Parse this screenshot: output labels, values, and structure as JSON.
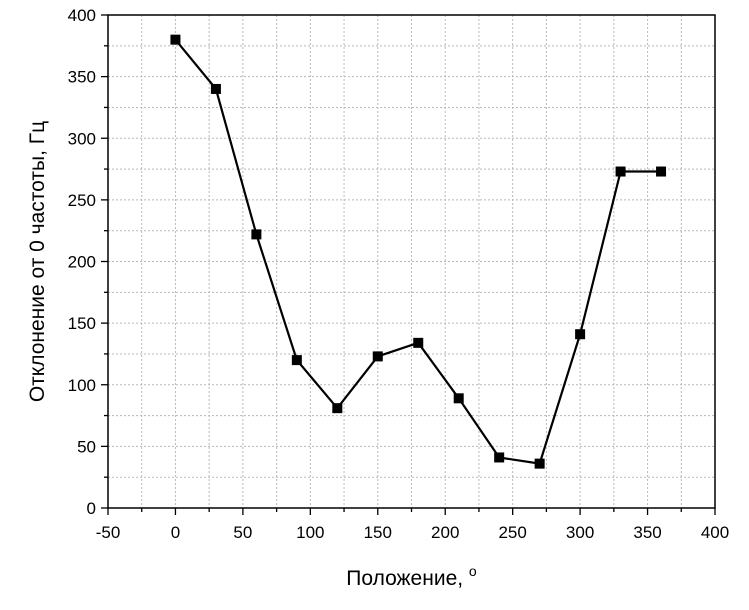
{
  "chart_data": {
    "type": "line",
    "title": "",
    "xlabel": "Положение, ",
    "xlabel_superscript": "o",
    "ylabel": "Отклонение от 0 частоты, Гц",
    "xlim": [
      -50,
      400
    ],
    "ylim": [
      0,
      400
    ],
    "x_major_ticks": [
      -50,
      0,
      50,
      100,
      150,
      200,
      250,
      300,
      350,
      400
    ],
    "y_major_ticks": [
      0,
      50,
      100,
      150,
      200,
      250,
      300,
      350,
      400
    ],
    "x_tick_labels": [
      "-50",
      "0",
      "50",
      "100",
      "150",
      "200",
      "250",
      "300",
      "350",
      "400"
    ],
    "y_tick_labels": [
      "0",
      "50",
      "100",
      "150",
      "200",
      "250",
      "300",
      "350",
      "400"
    ],
    "grid": true,
    "grid_style": "dotted",
    "marker": "square",
    "series": [
      {
        "color": "#000000",
        "x": [
          0,
          30,
          60,
          90,
          120,
          150,
          180,
          210,
          240,
          270,
          300,
          330,
          360
        ],
        "y": [
          380,
          340,
          222,
          120,
          81,
          123,
          134,
          89,
          41,
          36,
          141,
          273,
          273
        ]
      }
    ]
  }
}
